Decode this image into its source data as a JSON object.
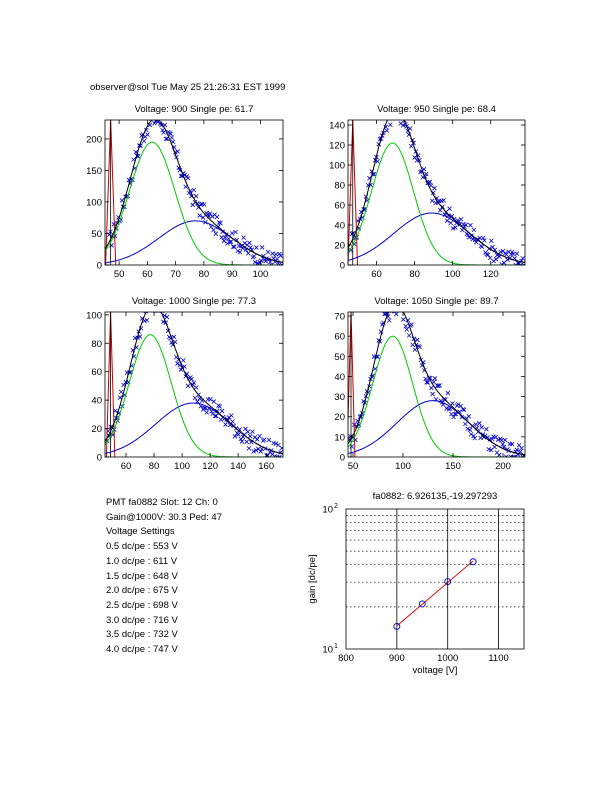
{
  "header": "observer@sol  Tue May 25 21:26:31 EST 1999",
  "colors": {
    "data": "#0000cc",
    "fit": "#000000",
    "gauss1": "#00cc00",
    "gauss2": "#0000cc",
    "ped": "#cc0000",
    "gainline": "#cc0000"
  },
  "chart_data": [
    {
      "type": "scatter",
      "title": "Voltage: 900 Single pe: 61.7",
      "xlim": [
        45,
        108
      ],
      "ylim": [
        0,
        230
      ],
      "xticks": [
        50,
        60,
        70,
        80,
        90,
        100
      ],
      "yticks": [
        0,
        50,
        100,
        150,
        200
      ],
      "pedestal": {
        "x": 47,
        "w": 1.8,
        "h": 230
      },
      "gauss1": {
        "a": 195,
        "mu": 61.7,
        "sigma": 8
      },
      "gauss2": {
        "a": 70,
        "mu": 77,
        "sigma": 13
      },
      "noise": 15
    },
    {
      "type": "scatter",
      "title": "Voltage: 950 Single pe: 68.4",
      "xlim": [
        45,
        138
      ],
      "ylim": [
        0,
        145
      ],
      "xticks": [
        60,
        80,
        100,
        120
      ],
      "yticks": [
        0,
        20,
        40,
        60,
        80,
        100,
        120,
        140
      ],
      "pedestal": {
        "x": 47.5,
        "w": 2.5,
        "h": 145
      },
      "gauss1": {
        "a": 122,
        "mu": 68.4,
        "sigma": 11
      },
      "gauss2": {
        "a": 52,
        "mu": 89,
        "sigma": 20
      },
      "noise": 10
    },
    {
      "type": "scatter",
      "title": "Voltage: 1000 Single pe: 77.3",
      "xlim": [
        45,
        172
      ],
      "ylim": [
        0,
        102
      ],
      "xticks": [
        60,
        80,
        100,
        120,
        140,
        160
      ],
      "yticks": [
        0,
        20,
        40,
        60,
        80,
        100
      ],
      "pedestal": {
        "x": 49,
        "w": 3,
        "h": 102
      },
      "gauss1": {
        "a": 86,
        "mu": 77.3,
        "sigma": 15
      },
      "gauss2": {
        "a": 38,
        "mu": 108,
        "sigma": 27
      },
      "noise": 7
    },
    {
      "type": "scatter",
      "title": "Voltage: 1050 Single pe: 89.7",
      "xlim": [
        45,
        222
      ],
      "ylim": [
        0,
        72
      ],
      "xticks": [
        50,
        100,
        150,
        200
      ],
      "yticks": [
        0,
        10,
        20,
        30,
        40,
        50,
        60,
        70
      ],
      "pedestal": {
        "x": 48,
        "w": 4,
        "h": 72
      },
      "gauss1": {
        "a": 60,
        "mu": 89.7,
        "sigma": 20
      },
      "gauss2": {
        "a": 28,
        "mu": 130,
        "sigma": 36
      },
      "noise": 5
    },
    {
      "type": "line",
      "title": "fa0882: 6.926135,-19.297293",
      "xlabel": "voltage [V]",
      "ylabel": "gain [dc/pe]",
      "xlim": [
        800,
        1150
      ],
      "ylim": [
        10,
        100
      ],
      "yscale": "log",
      "xticks": [
        800,
        900,
        1000,
        1100
      ],
      "yticks": [
        {
          "v": 10,
          "base": "10",
          "exp": "1"
        },
        {
          "v": 100,
          "base": "10",
          "exp": "2"
        }
      ],
      "points": {
        "x": [
          900,
          950,
          1000,
          1050
        ],
        "y": [
          14.5,
          21,
          30.3,
          42
        ]
      },
      "fit_x": [
        900,
        1050
      ]
    }
  ],
  "info": {
    "pmt": "PMT fa0882 Slot: 12 Ch: 0",
    "gain": "Gain@1000V: 30.3 Ped: 47",
    "settings_title": "Voltage Settings",
    "settings": [
      "0.5 dc/pe : 553 V",
      "1.0 dc/pe : 611 V",
      "1.5 dc/pe : 648 V",
      "2.0 dc/pe : 675 V",
      "2.5 dc/pe : 698 V",
      "3.0 dc/pe : 716 V",
      "3.5 dc/pe : 732 V",
      "4.0 dc/pe : 747 V"
    ]
  }
}
